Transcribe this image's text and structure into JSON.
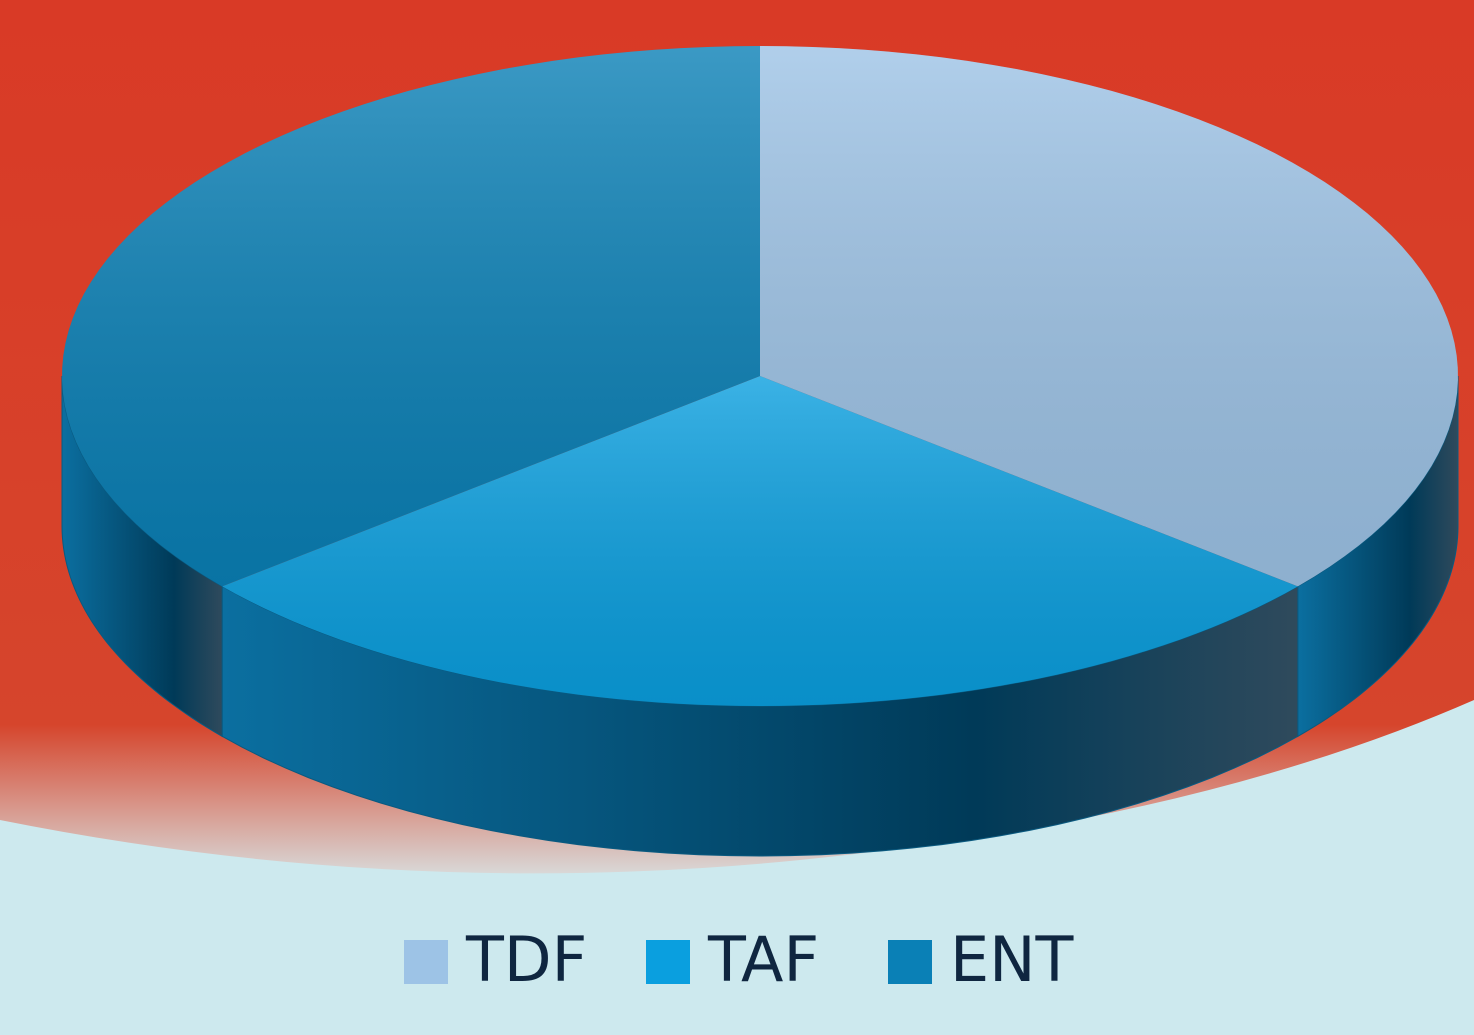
{
  "chart_data": {
    "type": "pie3d",
    "categories": [
      "TDF",
      "TAF",
      "ENT"
    ],
    "values": [
      36,
      28,
      36
    ],
    "colors": [
      "#9dc3e6",
      "#0a9fdf",
      "#0a80b6"
    ],
    "legend": "bottom"
  }
}
